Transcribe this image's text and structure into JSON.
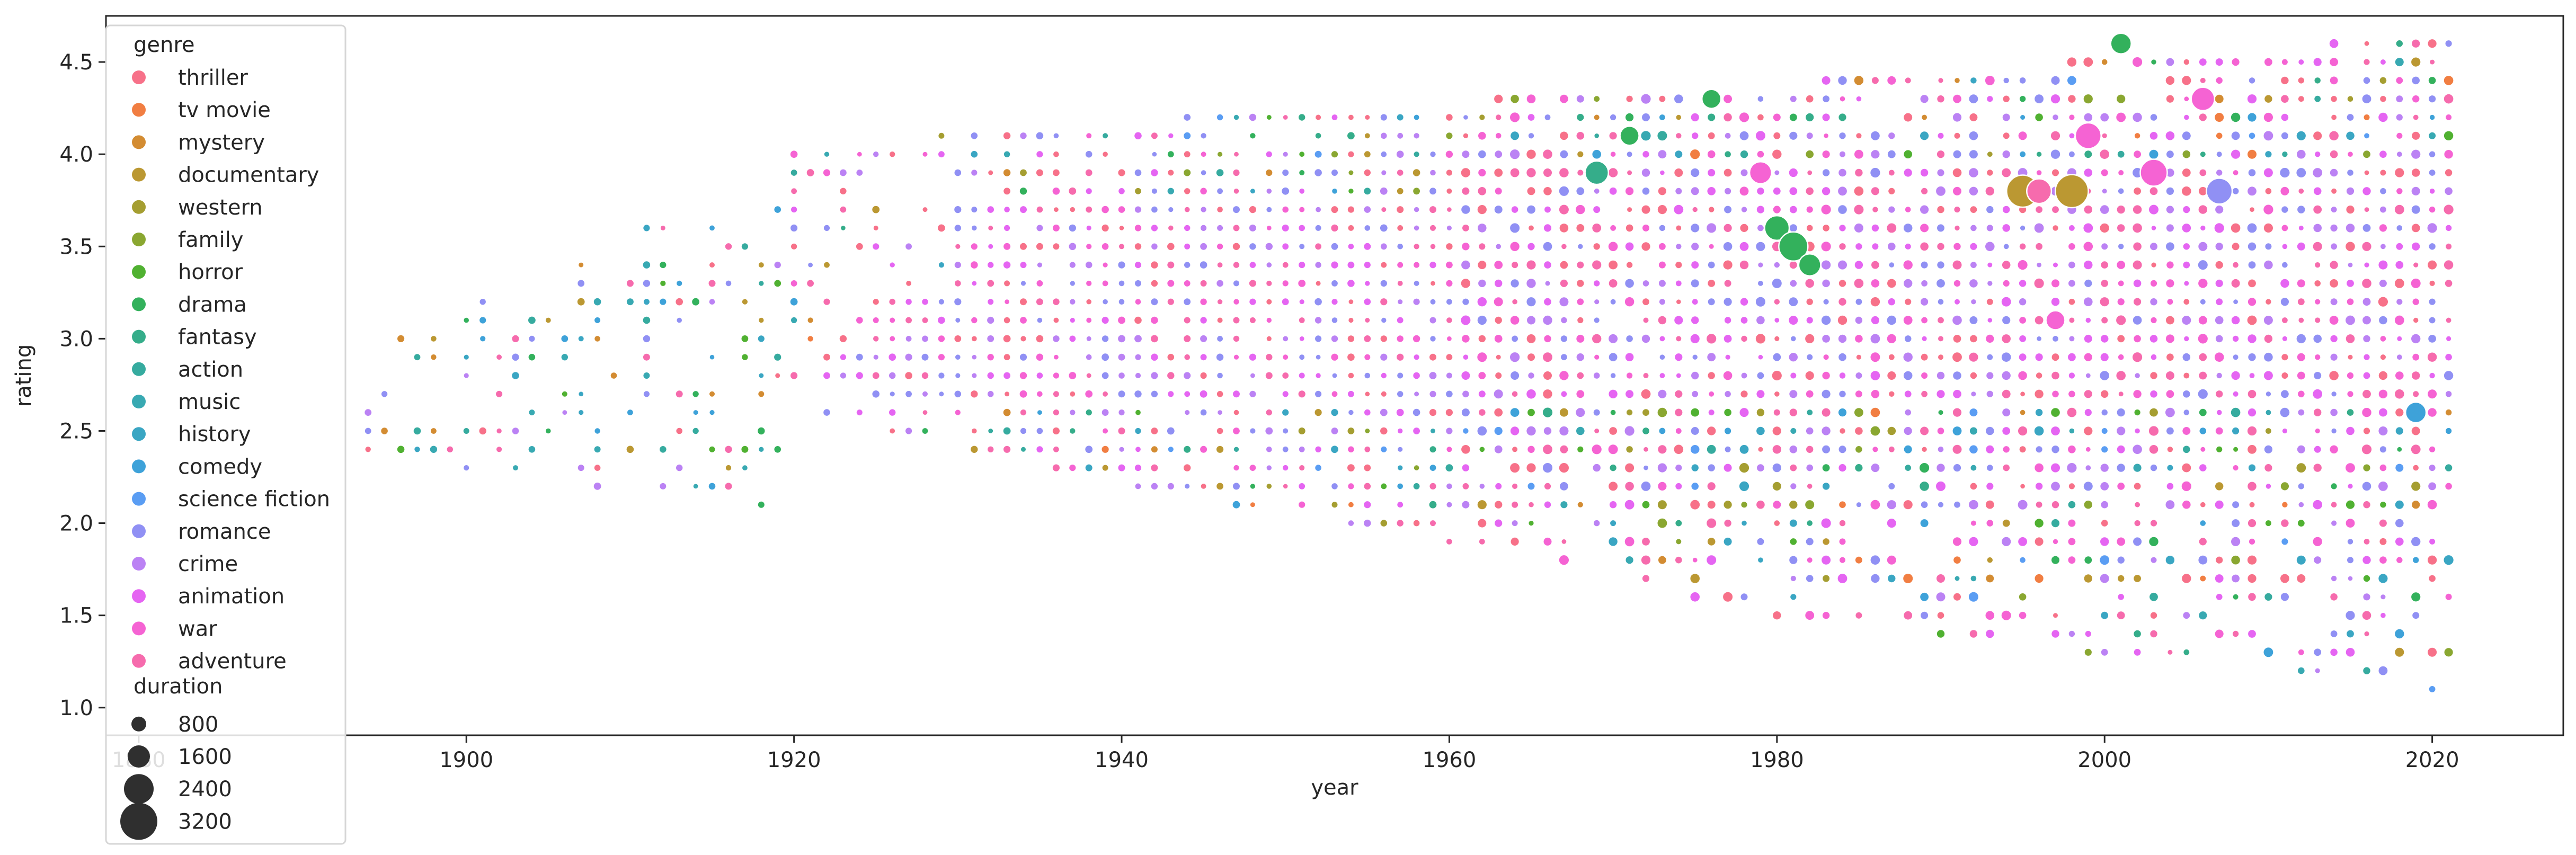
{
  "chart_data": {
    "type": "scatter",
    "xlabel": "year",
    "ylabel": "rating",
    "xlim": [
      1878,
      2028
    ],
    "ylim": [
      0.85,
      4.75
    ],
    "x_ticks": [
      1880,
      1900,
      1920,
      1940,
      1960,
      1980,
      2000,
      2020
    ],
    "x_tick_labels": [
      "1880",
      "1900",
      "1920",
      "1940",
      "1960",
      "1980",
      "2000",
      "2020"
    ],
    "y_ticks": [
      1.0,
      1.5,
      2.0,
      2.5,
      3.0,
      3.5,
      4.0,
      4.5
    ],
    "y_tick_labels": [
      "1.0",
      "1.5",
      "2.0",
      "2.5",
      "3.0",
      "3.5",
      "4.0",
      "4.5"
    ],
    "grid": false,
    "legend": {
      "placement": "upper-left",
      "hue_title": "genre",
      "size_title": "duration",
      "genres": [
        {
          "name": "thriller",
          "color": "#f77189"
        },
        {
          "name": "tv movie",
          "color": "#f17e42"
        },
        {
          "name": "mystery",
          "color": "#d38c32"
        },
        {
          "name": "documentary",
          "color": "#bb9832"
        },
        {
          "name": "western",
          "color": "#a59e31"
        },
        {
          "name": "family",
          "color": "#8aa731"
        },
        {
          "name": "horror",
          "color": "#50b131"
        },
        {
          "name": "drama",
          "color": "#33b15c"
        },
        {
          "name": "fantasy",
          "color": "#35ad8a"
        },
        {
          "name": "action",
          "color": "#36ab9f"
        },
        {
          "name": "music",
          "color": "#38a9b2"
        },
        {
          "name": "history",
          "color": "#3aa6c3"
        },
        {
          "name": "comedy",
          "color": "#3ea2d9"
        },
        {
          "name": "science fiction",
          "color": "#5a9df3"
        },
        {
          "name": "romance",
          "color": "#9090f4"
        },
        {
          "name": "crime",
          "color": "#bb82f4"
        },
        {
          "name": "animation",
          "color": "#e565f2"
        },
        {
          "name": "war",
          "color": "#f563d3"
        },
        {
          "name": "adventure",
          "color": "#f66bad"
        }
      ],
      "sizes": [
        {
          "label": "800",
          "value": 800
        },
        {
          "label": "1600",
          "value": 1600
        },
        {
          "label": "2400",
          "value": 2400
        },
        {
          "label": "3200",
          "value": 3200
        }
      ]
    },
    "size_variable": "duration",
    "hue_variable": "genre",
    "points_description": "dense grid of points at integer years 1894-2021 and ratings in 0.1 steps; reproduced in the rendering script from the observed ranges",
    "featured_points": [
      {
        "x": 1969,
        "y": 3.9,
        "genre": "fantasy",
        "duration": 1800
      },
      {
        "x": 1971,
        "y": 4.1,
        "genre": "drama",
        "duration": 1200
      },
      {
        "x": 1976,
        "y": 4.3,
        "genre": "drama",
        "duration": 1200
      },
      {
        "x": 1979,
        "y": 3.9,
        "genre": "war",
        "duration": 1600
      },
      {
        "x": 1980,
        "y": 3.6,
        "genre": "drama",
        "duration": 2000
      },
      {
        "x": 1981,
        "y": 3.5,
        "genre": "drama",
        "duration": 2800
      },
      {
        "x": 1982,
        "y": 3.4,
        "genre": "drama",
        "duration": 1600
      },
      {
        "x": 1995,
        "y": 3.8,
        "genre": "documentary",
        "duration": 3400
      },
      {
        "x": 1996,
        "y": 3.8,
        "genre": "adventure",
        "duration": 2000
      },
      {
        "x": 1998,
        "y": 3.8,
        "genre": "documentary",
        "duration": 3600
      },
      {
        "x": 1999,
        "y": 4.1,
        "genre": "war",
        "duration": 2200
      },
      {
        "x": 2001,
        "y": 4.6,
        "genre": "drama",
        "duration": 1400
      },
      {
        "x": 2003,
        "y": 3.9,
        "genre": "war",
        "duration": 2400
      },
      {
        "x": 2006,
        "y": 4.3,
        "genre": "war",
        "duration": 1800
      },
      {
        "x": 2007,
        "y": 3.8,
        "genre": "romance",
        "duration": 2200
      },
      {
        "x": 1997,
        "y": 3.1,
        "genre": "war",
        "duration": 1200
      },
      {
        "x": 2019,
        "y": 2.6,
        "genre": "comedy",
        "duration": 1400
      }
    ]
  }
}
